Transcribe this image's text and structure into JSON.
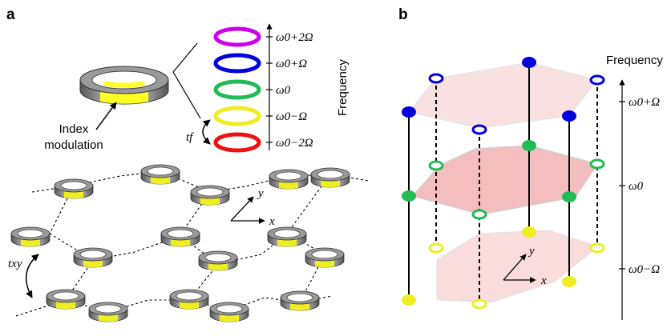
{
  "panel_a": {
    "label": "a",
    "ring_callout": [
      "Index",
      "modulation"
    ],
    "ladder_levels": [
      {
        "text": "ω0+2Ω",
        "color": "#cc00ee"
      },
      {
        "text": "ω0+Ω",
        "color": "#0000dd"
      },
      {
        "text": "ω0",
        "color": "#22bb55"
      },
      {
        "text": "ω0−Ω",
        "color": "#eeee22"
      },
      {
        "text": "ω0−2Ω",
        "color": "#ee1111"
      }
    ],
    "ladder_axis_label": "Frequency",
    "coupling_f": "tf",
    "coupling_xy": "txy",
    "axis_x": "x",
    "axis_y": "y"
  },
  "panel_b": {
    "label": "b",
    "axis_label": "Frequency",
    "axis_ticks": [
      "ω0+Ω",
      "ω0",
      "ω0−Ω"
    ],
    "axis_x": "x",
    "axis_y": "y",
    "layer_colors": {
      "top": "#0000dd",
      "middle": "#22bb55",
      "bottom": "#eeee22"
    },
    "plane_fill": "#f7c8c8"
  }
}
